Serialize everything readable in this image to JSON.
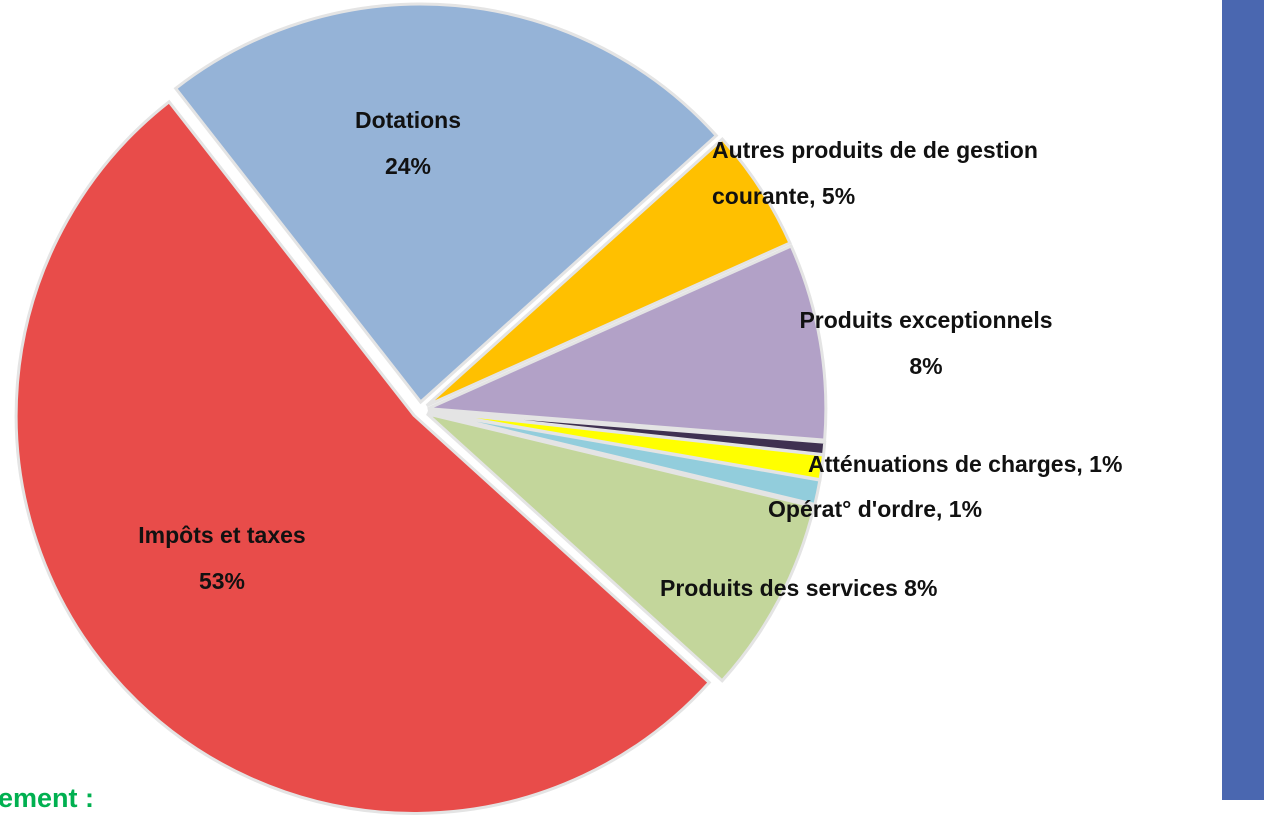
{
  "chart_data": {
    "type": "pie",
    "labels": [
      [
        "Dotations",
        "24%"
      ],
      [
        "Autres produits de de gestion",
        "courante, 5%"
      ],
      [
        "Produits exceptionnels",
        "8%"
      ],
      null,
      [
        "Atténuations de charges, 1%"
      ],
      [
        "Opérat° d'ordre, 1%"
      ],
      [
        "Produits des services 8%"
      ],
      [
        "Impôts et taxes",
        "53%"
      ]
    ],
    "values": [
      24,
      5,
      8,
      0.5,
      1,
      1,
      8,
      53
    ],
    "colors": [
      "#95b3d7",
      "#ffc000",
      "#b2a1c7",
      "#3f3151",
      "#ffff00",
      "#92cddc",
      "#c3d69b",
      "#e84c4a"
    ],
    "footer_text": "ement :"
  },
  "side_bar_color": "#4a67b0"
}
